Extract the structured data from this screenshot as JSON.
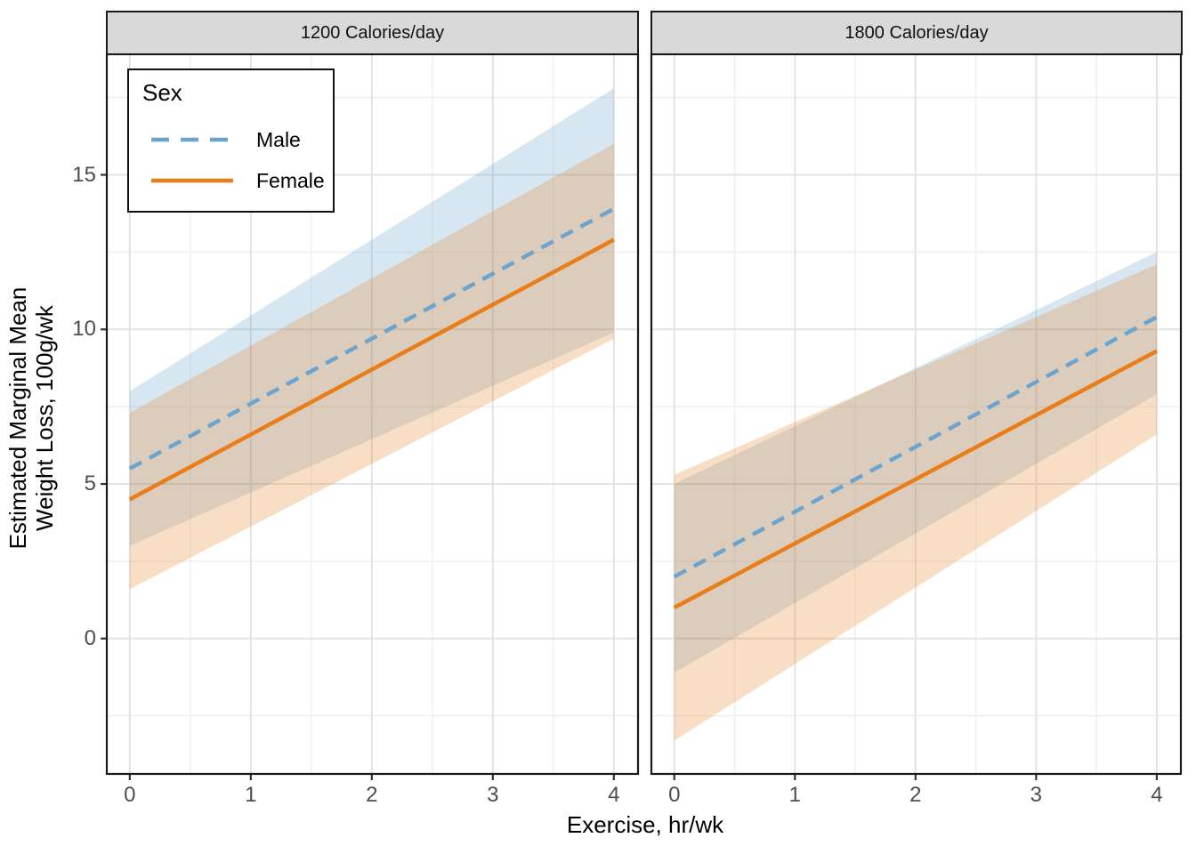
{
  "figure": {
    "x_axis_title": "Exercise, hr/wk",
    "y_axis_title_lines": [
      "Estimated Marginal Mean",
      "Weight Loss, 100g/wk"
    ]
  },
  "legend": {
    "title": "Sex",
    "items": [
      {
        "label": "Male",
        "color": "#6BA5CF",
        "linetype": "dashed"
      },
      {
        "label": "Female",
        "color": "#E87D1A",
        "linetype": "solid"
      }
    ]
  },
  "colors": {
    "strip_bg": "#D9D9D9",
    "panel_border": "#1A1A1A",
    "grid_major": "#E3E3E3",
    "grid_minor": "#F0F0F0",
    "tick_mark": "#333333",
    "tick_label": "#4D4D4D"
  },
  "chart_data": {
    "type": "line",
    "title": "",
    "xlabel": "Exercise, hr/wk",
    "ylabel": "Estimated Marginal Mean Weight Loss, 100g/wk",
    "legend_position": "inside top-left of first facet",
    "grid": true,
    "x_ticks": [
      0,
      1,
      2,
      3,
      4
    ],
    "y_ticks": [
      0,
      5,
      10,
      15
    ],
    "x_minor": [
      0.5,
      1.5,
      2.5,
      3.5
    ],
    "y_minor": [
      -2.5,
      2.5,
      7.5,
      12.5,
      17.5
    ],
    "x_range": [
      -0.19,
      4.2
    ],
    "y_range": [
      -4.38,
      18.9
    ],
    "facets": [
      {
        "title": "1200 Calories/day",
        "series": [
          {
            "name": "Male",
            "x": [
              0,
              4
            ],
            "y": [
              5.5,
              13.9
            ],
            "ci_lower": [
              3.0,
              9.9
            ],
            "ci_upper": [
              8.0,
              17.8
            ]
          },
          {
            "name": "Female",
            "x": [
              0,
              4
            ],
            "y": [
              4.5,
              12.9
            ],
            "ci_lower": [
              1.6,
              9.7
            ],
            "ci_upper": [
              7.3,
              16.0
            ]
          }
        ]
      },
      {
        "title": "1800 Calories/day",
        "series": [
          {
            "name": "Male",
            "x": [
              0,
              4
            ],
            "y": [
              2.0,
              10.4
            ],
            "ci_lower": [
              -1.1,
              7.9
            ],
            "ci_upper": [
              5.0,
              12.5
            ]
          },
          {
            "name": "Female",
            "x": [
              0,
              4
            ],
            "y": [
              1.0,
              9.3
            ],
            "ci_lower": [
              -3.3,
              6.6
            ],
            "ci_upper": [
              5.3,
              12.1
            ]
          }
        ]
      }
    ]
  }
}
